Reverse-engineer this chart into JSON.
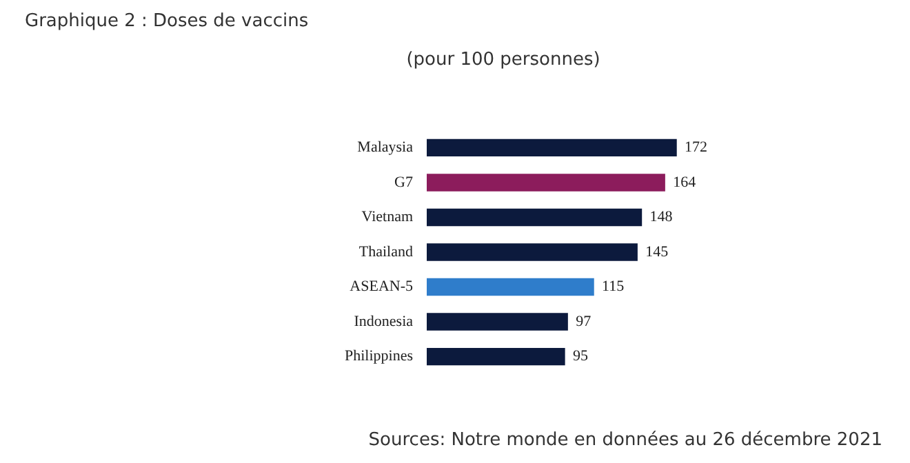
{
  "chart_data": {
    "type": "bar",
    "orientation": "horizontal",
    "title": "Graphique 2 : Doses de vaccins",
    "subtitle": "(pour 100 personnes)",
    "categories": [
      "Malaysia",
      "G7",
      "Vietnam",
      "Thailand",
      "ASEAN-5",
      "Indonesia",
      "Philippines"
    ],
    "values": [
      172,
      164,
      148,
      145,
      115,
      97,
      95
    ],
    "colors": [
      "#0c1a3d",
      "#8c1c5c",
      "#0c1a3d",
      "#0c1a3d",
      "#2f7dcb",
      "#0c1a3d",
      "#0c1a3d"
    ],
    "data_labels": true,
    "grid": false,
    "legend": false,
    "annotations": [
      "Sources: Notre monde en données au 26 décembre 2021"
    ]
  }
}
